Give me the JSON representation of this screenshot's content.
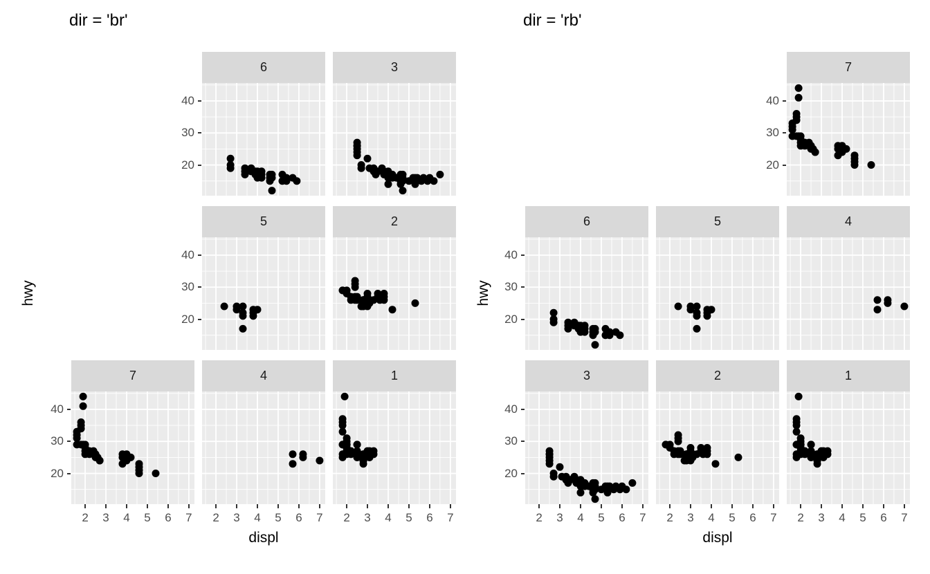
{
  "page": {
    "background": "#ffffff"
  },
  "chart_data": {
    "type": "scatter",
    "xlabel": "displ",
    "ylabel": "hwy",
    "x_range": [
      1.33,
      7.27
    ],
    "y_range": [
      10.4,
      45.6
    ],
    "x_ticks": [
      2,
      3,
      4,
      5,
      6,
      7
    ],
    "y_ticks": [
      20,
      30,
      40
    ],
    "x_minor_ticks": [
      1.5,
      2.5,
      3.5,
      4.5,
      5.5,
      6.5
    ],
    "y_minor_ticks": [
      15,
      25,
      35,
      45
    ],
    "grid": "white major and minor gridlines on grey panel",
    "legend": "none",
    "point_color": "#000000",
    "point_radius": 5.5,
    "colors": {
      "panel_bg": "#EBEBEB",
      "strip_bg": "#D9D9D9",
      "strip_text": "#1A1A1A",
      "axis_text": "#4D4D4D",
      "axis_title": "#000000",
      "title_text": "#000000",
      "gridline": "#FFFFFF",
      "tick_mark": "#333333"
    },
    "figures": [
      {
        "title": "dir = 'br'",
        "grid": [
          [
            "",
            "6",
            "3"
          ],
          [
            "",
            "5",
            "2"
          ],
          [
            "7",
            "4",
            "1"
          ]
        ]
      },
      {
        "title": "dir = 'rb'",
        "grid": [
          [
            "",
            "",
            "7"
          ],
          [
            "6",
            "5",
            "4"
          ],
          [
            "3",
            "2",
            "1"
          ]
        ]
      }
    ],
    "facet_points": {
      "1": [
        [
          1.8,
          29
        ],
        [
          1.8,
          29
        ],
        [
          2.0,
          31
        ],
        [
          2.0,
          30
        ],
        [
          2.8,
          26
        ],
        [
          2.8,
          26
        ],
        [
          3.1,
          27
        ],
        [
          1.8,
          26
        ],
        [
          1.8,
          25
        ],
        [
          2.0,
          28
        ],
        [
          2.0,
          27
        ],
        [
          2.8,
          25
        ],
        [
          2.8,
          25
        ],
        [
          3.1,
          25
        ],
        [
          3.1,
          25
        ],
        [
          2.2,
          26
        ],
        [
          2.2,
          27
        ],
        [
          2.5,
          26
        ],
        [
          2.5,
          25
        ],
        [
          2.5,
          26
        ],
        [
          2.5,
          25
        ],
        [
          2.5,
          27
        ],
        [
          2.5,
          26
        ],
        [
          1.8,
          33
        ],
        [
          1.8,
          35
        ],
        [
          1.8,
          37
        ],
        [
          1.8,
          36
        ],
        [
          1.9,
          44
        ],
        [
          2.0,
          29
        ],
        [
          2.0,
          26
        ],
        [
          2.0,
          29
        ],
        [
          2.0,
          28
        ],
        [
          2.8,
          24
        ],
        [
          2.0,
          29
        ],
        [
          2.5,
          29
        ],
        [
          2.5,
          29
        ],
        [
          2.8,
          23
        ],
        [
          2.8,
          24
        ],
        [
          3.0,
          26
        ],
        [
          3.0,
          27
        ],
        [
          3.3,
          26
        ],
        [
          3.3,
          27
        ]
      ],
      "2": [
        [
          1.8,
          29
        ],
        [
          1.8,
          29
        ],
        [
          2.0,
          28
        ],
        [
          2.0,
          29
        ],
        [
          2.2,
          26
        ],
        [
          2.2,
          27
        ],
        [
          2.4,
          31
        ],
        [
          2.4,
          32
        ],
        [
          2.4,
          30
        ],
        [
          2.4,
          27
        ],
        [
          2.4,
          26
        ],
        [
          2.5,
          26
        ],
        [
          2.5,
          27
        ],
        [
          2.7,
          24
        ],
        [
          2.8,
          24
        ],
        [
          2.8,
          25
        ],
        [
          2.8,
          26
        ],
        [
          2.8,
          26
        ],
        [
          3.0,
          24
        ],
        [
          3.0,
          25
        ],
        [
          3.0,
          26
        ],
        [
          3.0,
          27
        ],
        [
          3.0,
          28
        ],
        [
          3.1,
          25
        ],
        [
          3.1,
          26
        ],
        [
          3.1,
          26
        ],
        [
          3.3,
          26
        ],
        [
          3.5,
          27
        ],
        [
          3.5,
          28
        ],
        [
          3.6,
          26
        ],
        [
          3.8,
          26
        ],
        [
          3.8,
          27
        ],
        [
          3.8,
          28
        ],
        [
          4.2,
          23
        ],
        [
          5.3,
          25
        ]
      ],
      "3": [
        [
          2.5,
          27
        ],
        [
          2.5,
          26
        ],
        [
          2.5,
          26
        ],
        [
          2.5,
          25
        ],
        [
          2.5,
          24
        ],
        [
          2.5,
          23
        ],
        [
          2.7,
          20
        ],
        [
          2.7,
          19
        ],
        [
          3.0,
          22
        ],
        [
          3.1,
          19
        ],
        [
          3.3,
          19
        ],
        [
          3.3,
          18
        ],
        [
          3.4,
          18
        ],
        [
          3.4,
          17
        ],
        [
          3.5,
          18
        ],
        [
          3.7,
          19
        ],
        [
          3.8,
          18
        ],
        [
          3.8,
          17
        ],
        [
          3.9,
          17
        ],
        [
          4.0,
          18
        ],
        [
          4.0,
          17
        ],
        [
          4.0,
          16
        ],
        [
          4.0,
          14
        ],
        [
          4.2,
          16
        ],
        [
          4.2,
          17
        ],
        [
          4.4,
          16
        ],
        [
          4.6,
          17
        ],
        [
          4.6,
          16
        ],
        [
          4.6,
          15
        ],
        [
          4.6,
          14
        ],
        [
          4.7,
          17
        ],
        [
          4.7,
          16
        ],
        [
          4.7,
          15
        ],
        [
          4.7,
          12
        ],
        [
          5.0,
          15
        ],
        [
          5.2,
          16
        ],
        [
          5.3,
          16
        ],
        [
          5.3,
          15
        ],
        [
          5.3,
          14
        ],
        [
          5.4,
          16
        ],
        [
          5.6,
          15
        ],
        [
          5.7,
          16
        ],
        [
          5.9,
          15
        ],
        [
          6.0,
          16
        ],
        [
          6.2,
          15
        ],
        [
          6.5,
          17
        ]
      ],
      "4": [
        [
          5.7,
          26
        ],
        [
          5.7,
          23
        ],
        [
          6.2,
          26
        ],
        [
          6.2,
          25
        ],
        [
          7.0,
          24
        ]
      ],
      "5": [
        [
          2.4,
          24
        ],
        [
          3.0,
          24
        ],
        [
          3.0,
          23
        ],
        [
          3.3,
          24
        ],
        [
          3.3,
          22
        ],
        [
          3.3,
          21
        ],
        [
          3.3,
          17
        ],
        [
          3.8,
          23
        ],
        [
          3.8,
          22
        ],
        [
          3.8,
          21
        ],
        [
          4.0,
          23
        ]
      ],
      "6": [
        [
          2.7,
          22
        ],
        [
          2.7,
          20
        ],
        [
          2.7,
          19
        ],
        [
          3.4,
          19
        ],
        [
          3.4,
          18
        ],
        [
          3.4,
          17
        ],
        [
          3.7,
          19
        ],
        [
          3.7,
          18
        ],
        [
          3.9,
          18
        ],
        [
          3.9,
          17
        ],
        [
          4.0,
          18
        ],
        [
          4.0,
          17
        ],
        [
          4.0,
          16
        ],
        [
          4.2,
          18
        ],
        [
          4.2,
          17
        ],
        [
          4.2,
          16
        ],
        [
          4.6,
          17
        ],
        [
          4.6,
          16
        ],
        [
          4.6,
          15
        ],
        [
          4.7,
          17
        ],
        [
          4.7,
          16
        ],
        [
          4.7,
          12
        ],
        [
          5.2,
          17
        ],
        [
          5.2,
          15
        ],
        [
          5.4,
          16
        ],
        [
          5.4,
          15
        ],
        [
          5.7,
          16
        ],
        [
          5.9,
          15
        ]
      ],
      "7": [
        [
          1.6,
          33
        ],
        [
          1.6,
          32
        ],
        [
          1.6,
          31
        ],
        [
          1.6,
          29
        ],
        [
          1.8,
          36
        ],
        [
          1.8,
          35
        ],
        [
          1.8,
          34
        ],
        [
          1.8,
          29
        ],
        [
          1.9,
          44
        ],
        [
          1.9,
          41
        ],
        [
          1.9,
          29
        ],
        [
          2.0,
          29
        ],
        [
          2.0,
          28
        ],
        [
          2.0,
          27
        ],
        [
          2.0,
          26
        ],
        [
          2.2,
          27
        ],
        [
          2.2,
          26
        ],
        [
          2.4,
          27
        ],
        [
          2.4,
          26
        ],
        [
          2.5,
          26
        ],
        [
          2.5,
          25
        ],
        [
          2.6,
          25
        ],
        [
          2.7,
          24
        ],
        [
          2.7,
          24
        ],
        [
          3.8,
          26
        ],
        [
          3.8,
          25
        ],
        [
          3.8,
          23
        ],
        [
          4.0,
          26
        ],
        [
          4.0,
          24
        ],
        [
          4.2,
          25
        ],
        [
          4.6,
          23
        ],
        [
          4.6,
          22
        ],
        [
          4.6,
          21
        ],
        [
          4.6,
          20
        ],
        [
          5.4,
          20
        ]
      ]
    }
  }
}
